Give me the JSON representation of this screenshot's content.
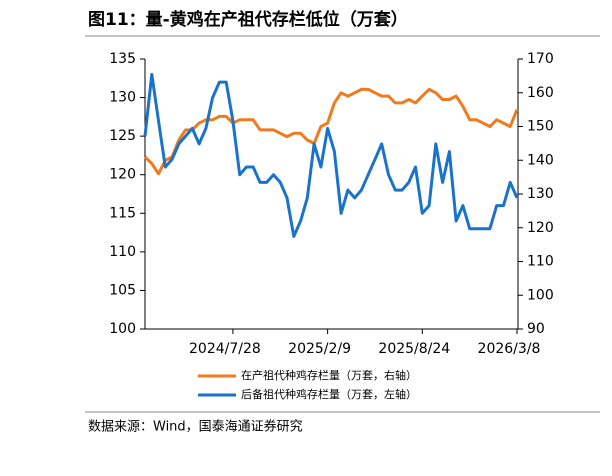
{
  "chart_data": {
    "type": "line",
    "title": "图11：量-黄鸡在产祖代存栏低位（万套）",
    "source": "数据来源：Wind，国泰海通证券研究",
    "categories": [
      null,
      null,
      null,
      null,
      null,
      null,
      null,
      null,
      null,
      null,
      null,
      null,
      null,
      "2024/7/28",
      null,
      null,
      null,
      null,
      null,
      null,
      null,
      null,
      null,
      null,
      null,
      null,
      null,
      "2025/2/9",
      null,
      null,
      null,
      null,
      null,
      null,
      null,
      null,
      null,
      null,
      null,
      null,
      null,
      "2025/8/24",
      null,
      null,
      null,
      null,
      null,
      null,
      null,
      null,
      null,
      null,
      null,
      null,
      null,
      "2026/3/8"
    ],
    "series": [
      {
        "name": "在产祖代种鸡存栏量（万套，右轴）",
        "color": "#f07a1e",
        "axis": "y2",
        "values": [
          141,
          139,
          136,
          140,
          141,
          146,
          149,
          149,
          151,
          152,
          152,
          153,
          153,
          151,
          152,
          152,
          152,
          149,
          149,
          149,
          148,
          147,
          148,
          148,
          146,
          145,
          150,
          151,
          157,
          160,
          159,
          160,
          161,
          161,
          160,
          159,
          159,
          157,
          157,
          158,
          157,
          159,
          161,
          160,
          158,
          158,
          159,
          156,
          152,
          152,
          151,
          150,
          152,
          151,
          150,
          155
        ]
      },
      {
        "name": "后备祖代种鸡存栏量（万套，左轴）",
        "color": "#1a72c9",
        "values": [
          125,
          133,
          127,
          121,
          122,
          124,
          125,
          126,
          124,
          126,
          130,
          132,
          132,
          127,
          120,
          121,
          121,
          119,
          119,
          120,
          119,
          117,
          112,
          114,
          117,
          124,
          121,
          126,
          123,
          115,
          118,
          117,
          118,
          120,
          122,
          124,
          120,
          118,
          118,
          119,
          121,
          115,
          116,
          124,
          119,
          123,
          114,
          116,
          113,
          113,
          113,
          113,
          116,
          116,
          119,
          117
        ]
      }
    ],
    "ylim": [
      100,
      135
    ],
    "yticks": [
      100,
      105,
      110,
      115,
      120,
      125,
      130,
      135
    ],
    "y2lim": [
      90,
      170
    ],
    "y2ticks": [
      90,
      100,
      110,
      120,
      130,
      140,
      150,
      160,
      170
    ]
  }
}
